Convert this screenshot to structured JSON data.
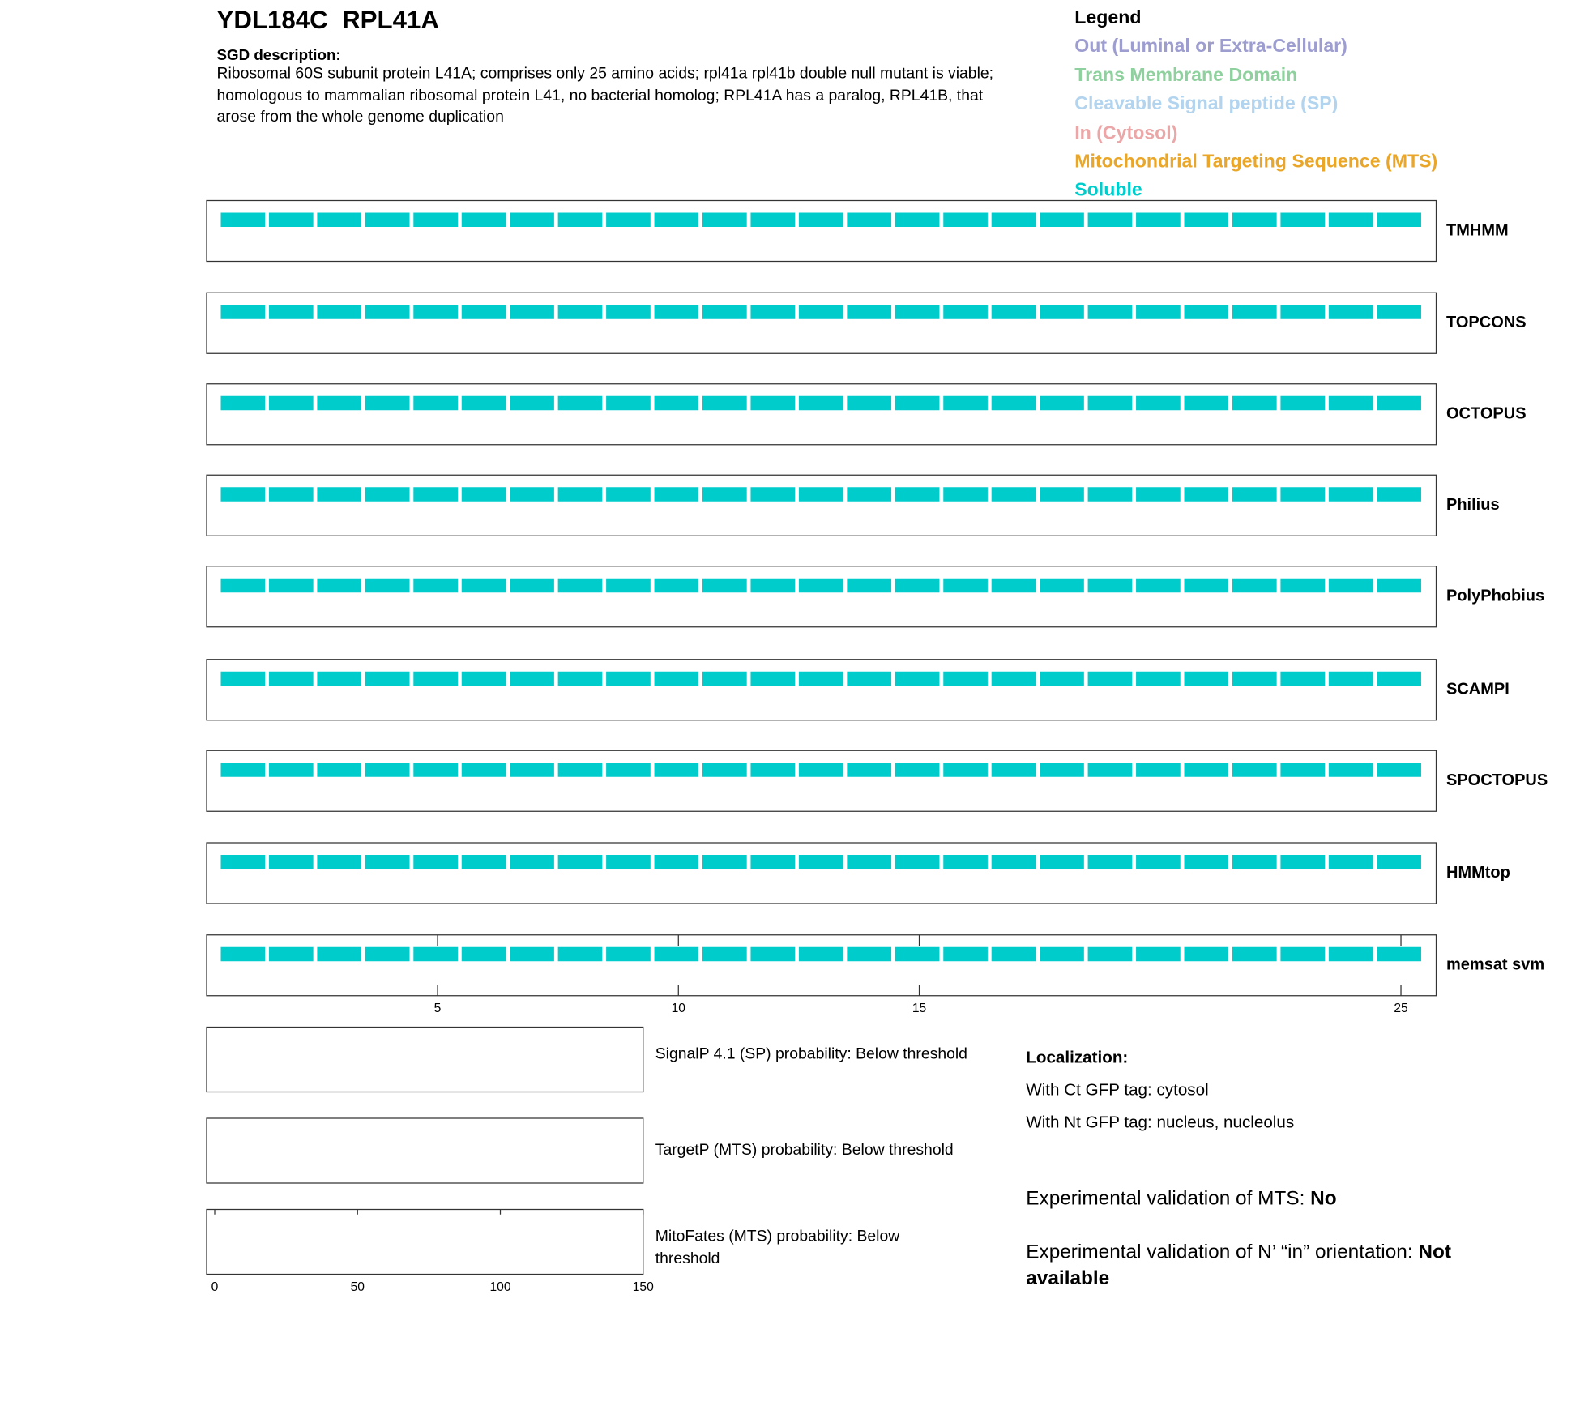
{
  "header": {
    "title": "YDL184C  RPL41A",
    "description_heading": "SGD description:",
    "description": "Ribosomal 60S subunit protein L41A; comprises only 25 amino acids; rpl41a rpl41b double null mutant is viable; homologous to mammalian ribosomal protein L41, no bacterial homolog; RPL41A has a paralog, RPL41B, that arose from the whole genome duplication"
  },
  "legend": {
    "title": "Legend",
    "items": [
      {
        "name": "Out (Luminal or Extra-Cellular)",
        "color": "#9d9dd0"
      },
      {
        "name": "Trans Membrane Domain",
        "color": "#8fd19e"
      },
      {
        "name": "Cleavable Signal peptide (SP)",
        "color": "#b3d4ee"
      },
      {
        "name": "In (Cytosol)",
        "color": "#eba7a7"
      },
      {
        "name": "Mitochondrial Targeting Sequence (MTS)",
        "color": "#eaa628"
      },
      {
        "name": "Soluble",
        "color": "#00cccc"
      }
    ]
  },
  "chart_data": {
    "type": "topology",
    "xlim": [
      0.5,
      25.5
    ],
    "xticks": [
      5,
      10,
      15,
      25
    ],
    "tracks": [
      {
        "name": "TMHMM",
        "segments": [
          {
            "start": 1,
            "end": 25,
            "state": "Soluble"
          }
        ]
      },
      {
        "name": "TOPCONS",
        "segments": [
          {
            "start": 1,
            "end": 25,
            "state": "Soluble"
          }
        ]
      },
      {
        "name": "OCTOPUS",
        "segments": [
          {
            "start": 1,
            "end": 25,
            "state": "Soluble"
          }
        ]
      },
      {
        "name": "Philius",
        "segments": [
          {
            "start": 1,
            "end": 25,
            "state": "Soluble"
          }
        ]
      },
      {
        "name": "PolyPhobius",
        "segments": [
          {
            "start": 1,
            "end": 25,
            "state": "Soluble"
          }
        ]
      },
      {
        "name": "SCAMPI",
        "segments": [
          {
            "start": 1,
            "end": 25,
            "state": "Soluble"
          }
        ]
      },
      {
        "name": "SPOCTOPUS",
        "segments": [
          {
            "start": 1,
            "end": 25,
            "state": "Soluble"
          }
        ]
      },
      {
        "name": "HMMtop",
        "segments": [
          {
            "start": 1,
            "end": 25,
            "state": "Soluble"
          }
        ]
      },
      {
        "name": "memsat svm",
        "segments": [
          {
            "start": 1,
            "end": 25,
            "state": "Soluble"
          }
        ]
      }
    ]
  },
  "probability_panels": {
    "xlim": [
      0,
      150
    ],
    "xticks": [
      0,
      50,
      100,
      150
    ],
    "panels": [
      "SignalP 4.1 (SP) probability: Below threshold",
      "TargetP (MTS) probability: Below threshold",
      "MitoFates (MTS) probability: Below threshold"
    ]
  },
  "localization": {
    "title": "Localization:",
    "lines": [
      "With Ct GFP tag: cytosol",
      "With Nt GFP tag: nucleus, nucleolus"
    ],
    "validations": [
      {
        "label": "Experimental validation of MTS:",
        "value": "No"
      },
      {
        "label": "Experimental validation of N’ “in” orientation:",
        "value": "Not available"
      }
    ]
  }
}
